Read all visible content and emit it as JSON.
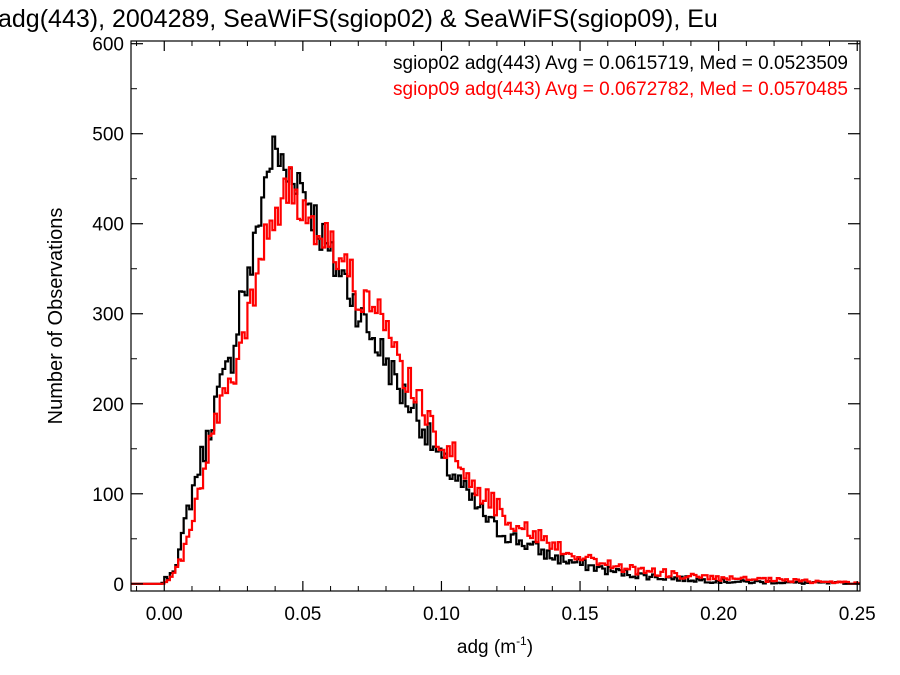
{
  "chart_data": {
    "type": "line",
    "title": "adg(443), 2004289, SeaWiFS(sgiop02) & SeaWiFS(sgiop09), Eu",
    "xlabel": "adg (m",
    "xlabel_sup": "-1",
    "xlabel_close": ")",
    "ylabel": "Number of Observations",
    "xlim": [
      -0.012,
      0.251
    ],
    "ylim": [
      -8,
      603
    ],
    "xticks": [
      {
        "value": 0.0,
        "label": "0.00"
      },
      {
        "value": 0.05,
        "label": "0.05"
      },
      {
        "value": 0.1,
        "label": "0.10"
      },
      {
        "value": 0.15,
        "label": "0.15"
      },
      {
        "value": 0.2,
        "label": "0.20"
      },
      {
        "value": 0.25,
        "label": "0.25"
      }
    ],
    "yticks": [
      {
        "value": 0,
        "label": "0"
      },
      {
        "value": 100,
        "label": "100"
      },
      {
        "value": 200,
        "label": "200"
      },
      {
        "value": 300,
        "label": "300"
      },
      {
        "value": 400,
        "label": "400"
      },
      {
        "value": 500,
        "label": "500"
      },
      {
        "value": 600,
        "label": "600"
      }
    ],
    "grid": false,
    "legend_position": "top-right",
    "bin_width": 0.001,
    "series": [
      {
        "name": "sgiop02 adg(443) Avg = 0.0615719, Med = 0.0523509",
        "color": "#000000",
        "anchors": [
          [
            -0.012,
            0
          ],
          [
            -0.002,
            0
          ],
          [
            0.0,
            3
          ],
          [
            0.002,
            10
          ],
          [
            0.004,
            22
          ],
          [
            0.006,
            40
          ],
          [
            0.008,
            75
          ],
          [
            0.01,
            100
          ],
          [
            0.012,
            125
          ],
          [
            0.014,
            145
          ],
          [
            0.016,
            165
          ],
          [
            0.018,
            195
          ],
          [
            0.02,
            215
          ],
          [
            0.022,
            230
          ],
          [
            0.024,
            245
          ],
          [
            0.026,
            280
          ],
          [
            0.028,
            330
          ],
          [
            0.03,
            330
          ],
          [
            0.032,
            360
          ],
          [
            0.034,
            405
          ],
          [
            0.036,
            440
          ],
          [
            0.038,
            470
          ],
          [
            0.04,
            480
          ],
          [
            0.042,
            470
          ],
          [
            0.044,
            450
          ],
          [
            0.046,
            460
          ],
          [
            0.048,
            455
          ],
          [
            0.05,
            440
          ],
          [
            0.052,
            430
          ],
          [
            0.054,
            410
          ],
          [
            0.056,
            395
          ],
          [
            0.06,
            360
          ],
          [
            0.064,
            345
          ],
          [
            0.068,
            320
          ],
          [
            0.072,
            290
          ],
          [
            0.076,
            270
          ],
          [
            0.08,
            250
          ],
          [
            0.085,
            215
          ],
          [
            0.09,
            195
          ],
          [
            0.095,
            165
          ],
          [
            0.1,
            135
          ],
          [
            0.105,
            120
          ],
          [
            0.11,
            95
          ],
          [
            0.115,
            78
          ],
          [
            0.12,
            60
          ],
          [
            0.13,
            45
          ],
          [
            0.14,
            30
          ],
          [
            0.15,
            22
          ],
          [
            0.16,
            15
          ],
          [
            0.17,
            10
          ],
          [
            0.18,
            7
          ],
          [
            0.19,
            5
          ],
          [
            0.2,
            3
          ],
          [
            0.21,
            2
          ],
          [
            0.22,
            2
          ],
          [
            0.23,
            1
          ],
          [
            0.24,
            1
          ],
          [
            0.251,
            0
          ]
        ]
      },
      {
        "name": "sgiop09 adg(443) Avg = 0.0672782, Med = 0.0570485",
        "color": "#ff0000",
        "anchors": [
          [
            -0.012,
            0
          ],
          [
            -0.001,
            0
          ],
          [
            0.001,
            2
          ],
          [
            0.003,
            8
          ],
          [
            0.005,
            20
          ],
          [
            0.007,
            35
          ],
          [
            0.009,
            60
          ],
          [
            0.011,
            85
          ],
          [
            0.013,
            110
          ],
          [
            0.015,
            135
          ],
          [
            0.017,
            160
          ],
          [
            0.019,
            185
          ],
          [
            0.021,
            200
          ],
          [
            0.023,
            215
          ],
          [
            0.025,
            230
          ],
          [
            0.027,
            250
          ],
          [
            0.029,
            280
          ],
          [
            0.031,
            300
          ],
          [
            0.033,
            330
          ],
          [
            0.035,
            360
          ],
          [
            0.037,
            385
          ],
          [
            0.039,
            405
          ],
          [
            0.041,
            425
          ],
          [
            0.043,
            420
          ],
          [
            0.045,
            440
          ],
          [
            0.047,
            430
          ],
          [
            0.049,
            420
          ],
          [
            0.051,
            420
          ],
          [
            0.053,
            410
          ],
          [
            0.055,
            400
          ],
          [
            0.058,
            390
          ],
          [
            0.062,
            370
          ],
          [
            0.066,
            345
          ],
          [
            0.07,
            325
          ],
          [
            0.074,
            310
          ],
          [
            0.078,
            295
          ],
          [
            0.082,
            260
          ],
          [
            0.086,
            240
          ],
          [
            0.09,
            210
          ],
          [
            0.095,
            185
          ],
          [
            0.1,
            160
          ],
          [
            0.105,
            140
          ],
          [
            0.11,
            115
          ],
          [
            0.115,
            100
          ],
          [
            0.12,
            85
          ],
          [
            0.13,
            60
          ],
          [
            0.14,
            45
          ],
          [
            0.15,
            30
          ],
          [
            0.16,
            22
          ],
          [
            0.17,
            15
          ],
          [
            0.18,
            12
          ],
          [
            0.19,
            8
          ],
          [
            0.2,
            6
          ],
          [
            0.21,
            5
          ],
          [
            0.22,
            4
          ],
          [
            0.23,
            3
          ],
          [
            0.24,
            2
          ],
          [
            0.251,
            1
          ]
        ]
      }
    ]
  }
}
